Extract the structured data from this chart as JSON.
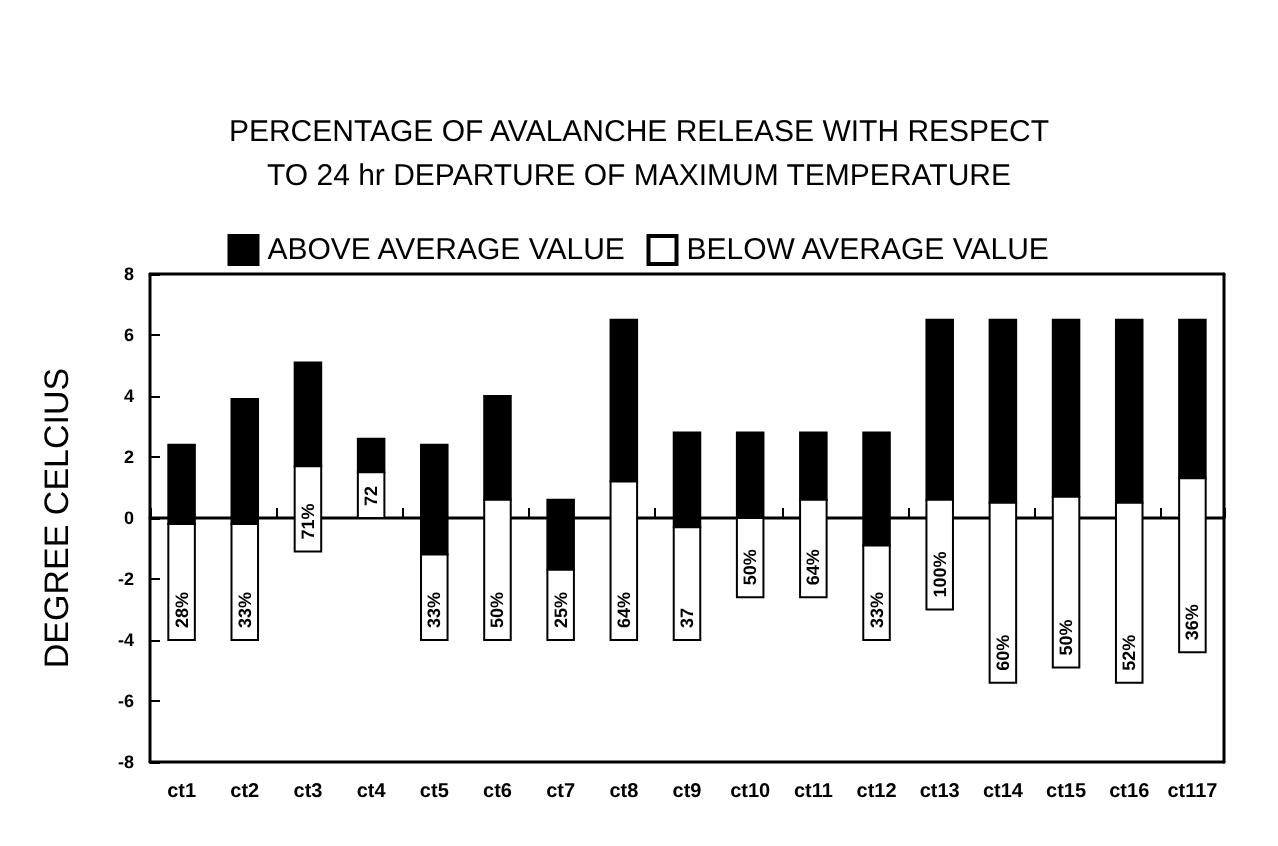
{
  "chart_data": {
    "type": "bar",
    "title": "PERCENTAGE OF AVALANCHE RELEASE WITH RESPECT\nTO 24 hr DEPARTURE OF MAXIMUM TEMPERATURE",
    "ylabel": "DEGREE CELCIUS",
    "categories": [
      "ct1",
      "ct2",
      "ct3",
      "ct4",
      "ct5",
      "ct6",
      "ct7",
      "ct8",
      "ct9",
      "ct10",
      "ct11",
      "ct12",
      "ct13",
      "ct14",
      "ct15",
      "ct16",
      "ct117"
    ],
    "series": [
      {
        "name": "ABOVE AVERAGE VALUE",
        "color": "#000000",
        "base": [
          -0.2,
          -0.2,
          1.7,
          1.5,
          -1.2,
          0.6,
          -1.7,
          1.2,
          -0.3,
          0,
          0.6,
          -0.9,
          0.6,
          0.5,
          0.7,
          0.5,
          1.3
        ],
        "values": [
          2.6,
          4.1,
          3.4,
          1.1,
          3.6,
          3.4,
          2.3,
          5.3,
          3.1,
          2.8,
          2.2,
          3.7,
          5.9,
          6.0,
          5.8,
          6.0,
          5.2
        ]
      },
      {
        "name": "BELOW AVERAGE VALUE",
        "color": "#ffffff",
        "base": [
          -4,
          -4,
          -1.1,
          0,
          -4,
          -4,
          -4,
          -4,
          -4,
          -2.6,
          -2.6,
          -4,
          -3,
          -5.4,
          -4.9,
          -5.4,
          -4.4
        ],
        "values": [
          3.8,
          3.8,
          2.8,
          1.5,
          2.8,
          4.6,
          2.3,
          5.2,
          3.7,
          2.6,
          3.2,
          3.1,
          3.6,
          5.9,
          5.6,
          5.9,
          5.7
        ]
      }
    ],
    "annotations": [
      {
        "text": "28%",
        "x": "ct1",
        "y": -4
      },
      {
        "text": "33%",
        "x": "ct2",
        "y": -4
      },
      {
        "text": "71%",
        "x": "ct3",
        "y": -1.1
      },
      {
        "text": "72",
        "x": "ct4",
        "y": 0
      },
      {
        "text": "33%",
        "x": "ct5",
        "y": -4
      },
      {
        "text": "50%",
        "x": "ct6",
        "y": -4
      },
      {
        "text": "25%",
        "x": "ct7",
        "y": -4
      },
      {
        "text": "64%",
        "x": "ct8",
        "y": -4
      },
      {
        "text": "37",
        "x": "ct9",
        "y": -4
      },
      {
        "text": "50%",
        "x": "ct10",
        "y": -2.6
      },
      {
        "text": "64%",
        "x": "ct11",
        "y": -2.6
      },
      {
        "text": "33%",
        "x": "ct12",
        "y": -4
      },
      {
        "text": "100%",
        "x": "ct13",
        "y": -3
      },
      {
        "text": "60%",
        "x": "ct14",
        "y": -5.4
      },
      {
        "text": "50%",
        "x": "ct15",
        "y": -4.9
      },
      {
        "text": "52%",
        "x": "ct16",
        "y": -5.4
      },
      {
        "text": "36%",
        "x": "ct117",
        "y": -4.4
      }
    ],
    "ylim": [
      -8,
      8
    ],
    "yticks": [
      8,
      6,
      4,
      2,
      0,
      -2,
      -4,
      -6,
      -8
    ],
    "legend": "top"
  }
}
